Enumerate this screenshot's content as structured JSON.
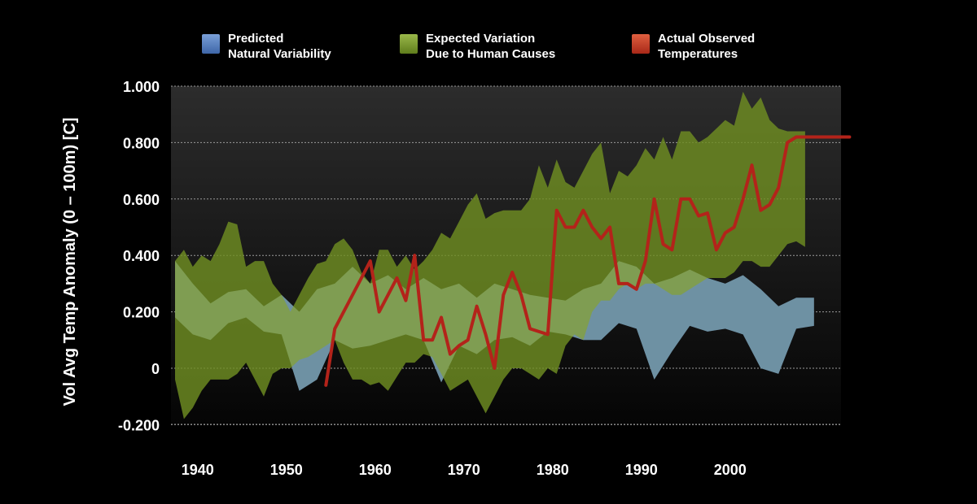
{
  "legend": [
    {
      "line1": "Predicted",
      "line2": "Natural Variability",
      "color": "#5b86c4"
    },
    {
      "line1": "Expected Variation",
      "line2": "Due to Human Causes",
      "color": "#7a9a2c"
    },
    {
      "line1": "Actual Observed",
      "line2": "Temperatures",
      "color": "#c8402c"
    }
  ],
  "chart_data": {
    "type": "area",
    "xlabel": "",
    "ylabel": "Vol Avg Temp Anomaly (0 – 100m) [C]",
    "xlim": [
      1938,
      2011
    ],
    "ylim": [
      -0.2,
      1.0
    ],
    "x_ticks": [
      "1940",
      "1950",
      "1960",
      "1970",
      "1980",
      "1990",
      "2000"
    ],
    "x_tick_values": [
      1940,
      1950,
      1960,
      1970,
      1980,
      1990,
      2000
    ],
    "y_ticks": [
      "-0.200",
      "0",
      "0.200",
      "0.400",
      "0.600",
      "0.800",
      "1.000"
    ],
    "y_tick_values": [
      -0.2,
      0,
      0.2,
      0.4,
      0.6,
      0.8,
      1.0
    ],
    "grid": true,
    "series": [
      {
        "name": "Predicted Natural Variability",
        "color": "#5b86c4",
        "x": [
          1938,
          1940,
          1942,
          1944,
          1946,
          1948,
          1950,
          1952,
          1954,
          1956,
          1958,
          1960,
          1962,
          1964,
          1966,
          1968,
          1970,
          1972,
          1974,
          1976,
          1978,
          1980,
          1982,
          1984,
          1986,
          1988,
          1990,
          1992,
          1994,
          1996,
          1998,
          2000,
          2002,
          2004,
          2006,
          2008,
          2010
        ],
        "upper": [
          0.38,
          0.3,
          0.23,
          0.27,
          0.28,
          0.22,
          0.26,
          0.2,
          0.28,
          0.3,
          0.36,
          0.3,
          0.33,
          0.28,
          0.32,
          0.28,
          0.3,
          0.25,
          0.3,
          0.28,
          0.26,
          0.25,
          0.24,
          0.28,
          0.3,
          0.38,
          0.36,
          0.3,
          0.32,
          0.35,
          0.32,
          0.3,
          0.33,
          0.28,
          0.22,
          0.25,
          0.25
        ],
        "lower": [
          0.18,
          0.12,
          0.1,
          0.16,
          0.18,
          0.13,
          0.12,
          -0.08,
          -0.04,
          0.1,
          0.07,
          0.08,
          0.1,
          0.12,
          0.1,
          -0.05,
          0.08,
          0.05,
          0.1,
          0.11,
          0.08,
          0.13,
          0.12,
          0.1,
          0.1,
          0.16,
          0.14,
          -0.04,
          0.06,
          0.15,
          0.13,
          0.14,
          0.12,
          0.0,
          -0.02,
          0.14,
          0.15
        ]
      },
      {
        "name": "Expected Variation Due to Human Causes",
        "color": "#7a9a2c",
        "x": [
          1938,
          1939,
          1940,
          1941,
          1942,
          1943,
          1944,
          1945,
          1946,
          1947,
          1948,
          1949,
          1950,
          1951,
          1952,
          1953,
          1954,
          1955,
          1956,
          1957,
          1958,
          1959,
          1960,
          1961,
          1962,
          1963,
          1964,
          1965,
          1966,
          1967,
          1968,
          1969,
          1970,
          1971,
          1972,
          1973,
          1974,
          1975,
          1976,
          1977,
          1978,
          1979,
          1980,
          1981,
          1982,
          1983,
          1984,
          1985,
          1986,
          1987,
          1988,
          1989,
          1990,
          1991,
          1992,
          1993,
          1994,
          1995,
          1996,
          1997,
          1998,
          1999,
          2000,
          2001,
          2002,
          2003,
          2004,
          2005,
          2006,
          2007,
          2008,
          2009
        ],
        "upper": [
          0.38,
          0.42,
          0.36,
          0.4,
          0.38,
          0.44,
          0.52,
          0.51,
          0.36,
          0.38,
          0.38,
          0.3,
          0.26,
          0.2,
          0.26,
          0.32,
          0.37,
          0.38,
          0.44,
          0.46,
          0.42,
          0.34,
          0.3,
          0.42,
          0.42,
          0.36,
          0.4,
          0.35,
          0.38,
          0.42,
          0.48,
          0.46,
          0.52,
          0.58,
          0.62,
          0.53,
          0.55,
          0.56,
          0.56,
          0.56,
          0.6,
          0.72,
          0.64,
          0.74,
          0.66,
          0.64,
          0.7,
          0.76,
          0.8,
          0.62,
          0.7,
          0.68,
          0.72,
          0.78,
          0.74,
          0.82,
          0.74,
          0.84,
          0.84,
          0.8,
          0.82,
          0.85,
          0.88,
          0.86,
          0.98,
          0.92,
          0.96,
          0.88,
          0.85,
          0.84,
          0.84,
          0.84
        ],
        "lower": [
          -0.04,
          -0.18,
          -0.14,
          -0.08,
          -0.04,
          -0.04,
          -0.04,
          -0.02,
          0.02,
          -0.04,
          -0.1,
          -0.02,
          0.0,
          0.0,
          0.03,
          0.04,
          0.06,
          0.08,
          0.1,
          0.02,
          -0.04,
          -0.04,
          -0.06,
          -0.05,
          -0.08,
          -0.03,
          0.02,
          0.02,
          0.05,
          0.04,
          -0.02,
          -0.08,
          -0.06,
          -0.04,
          -0.1,
          -0.16,
          -0.1,
          -0.04,
          0.0,
          0.0,
          -0.02,
          -0.04,
          0.0,
          -0.02,
          0.08,
          0.12,
          0.1,
          0.2,
          0.24,
          0.24,
          0.28,
          0.3,
          0.28,
          0.3,
          0.3,
          0.28,
          0.26,
          0.26,
          0.28,
          0.3,
          0.32,
          0.32,
          0.32,
          0.34,
          0.38,
          0.38,
          0.36,
          0.36,
          0.4,
          0.44,
          0.45,
          0.43
        ]
      },
      {
        "name": "Actual Observed Temperatures",
        "color": "#b3231a",
        "x": [
          1955,
          1956,
          1957,
          1958,
          1959,
          1960,
          1961,
          1962,
          1963,
          1964,
          1965,
          1966,
          1967,
          1968,
          1969,
          1970,
          1971,
          1972,
          1973,
          1974,
          1975,
          1976,
          1977,
          1978,
          1979,
          1980,
          1981,
          1982,
          1983,
          1984,
          1985,
          1986,
          1987,
          1988,
          1989,
          1990,
          1991,
          1992,
          1993,
          1994,
          1995,
          1996,
          1997,
          1998,
          1999,
          2000,
          2001,
          2002,
          2003,
          2004,
          2005,
          2006,
          2007,
          2008,
          2009,
          2010,
          2011,
          2012,
          2013,
          2014
        ],
        "y": [
          -0.06,
          0.14,
          0.2,
          0.26,
          0.32,
          0.38,
          0.2,
          0.26,
          0.32,
          0.24,
          0.4,
          0.1,
          0.1,
          0.18,
          0.05,
          0.08,
          0.1,
          0.22,
          0.12,
          0.0,
          0.26,
          0.34,
          0.26,
          0.14,
          0.13,
          0.12,
          0.56,
          0.5,
          0.5,
          0.56,
          0.5,
          0.46,
          0.5,
          0.3,
          0.3,
          0.28,
          0.38,
          0.6,
          0.44,
          0.42,
          0.6,
          0.6,
          0.54,
          0.55,
          0.42,
          0.48,
          0.5,
          0.6,
          0.72,
          0.56,
          0.58,
          0.64,
          0.8,
          0.82,
          0.82,
          0.82,
          0.82,
          0.82,
          0.82,
          0.82
        ]
      }
    ]
  }
}
